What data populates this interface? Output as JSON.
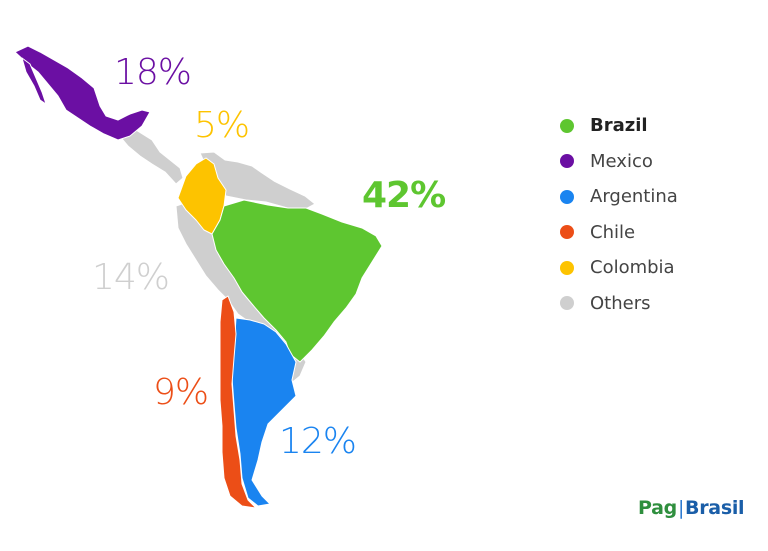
{
  "chart_data": {
    "type": "map",
    "title": "",
    "series": [
      {
        "name": "Brazil",
        "value": 42,
        "label": "42%",
        "color": "#5ec630",
        "bold": true
      },
      {
        "name": "Mexico",
        "value": 18,
        "label": "18%",
        "color": "#6b0fa3",
        "bold": false
      },
      {
        "name": "Argentina",
        "value": 12,
        "label": "12%",
        "color": "#1a84f0",
        "bold": false
      },
      {
        "name": "Chile",
        "value": 9,
        "label": "9%",
        "color": "#ec4e17",
        "bold": false
      },
      {
        "name": "Colombia",
        "value": 5,
        "label": "5%",
        "color": "#fdc300",
        "bold": false
      },
      {
        "name": "Others",
        "value": 14,
        "label": "14%",
        "color": "#cfcfcf",
        "bold": false
      }
    ],
    "legend_position": "right"
  },
  "brand": {
    "part1": "Pag",
    "separator": "|",
    "part2": "Brasil",
    "color1": "#2f8f3e",
    "color2": "#1a5ea8"
  }
}
